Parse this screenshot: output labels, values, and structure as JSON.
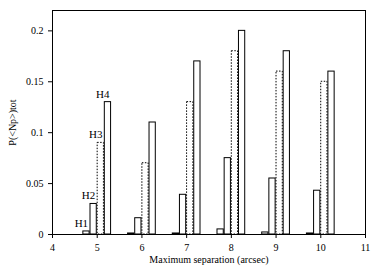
{
  "chart_data": {
    "type": "bar",
    "x_label": "Maximum separation (arcsec)",
    "y_label": "P(<Np>)tot",
    "x": [
      5,
      6,
      7,
      8,
      9,
      10
    ],
    "series": [
      {
        "name": "H1",
        "color": "#000000",
        "line_style": "solid",
        "values": [
          0.003,
          0.001,
          0.001,
          0.005,
          0.002,
          0.001
        ]
      },
      {
        "name": "H2",
        "color": "#000000",
        "line_style": "solid",
        "values": [
          0.03,
          0.016,
          0.039,
          0.075,
          0.055,
          0.043
        ]
      },
      {
        "name": "H3",
        "color": "#000000",
        "line_style": "dotted",
        "values": [
          0.09,
          0.07,
          0.13,
          0.18,
          0.16,
          0.15
        ]
      },
      {
        "name": "H4",
        "color": "#000000",
        "line_style": "solid",
        "values": [
          0.13,
          0.11,
          0.17,
          0.2,
          0.18,
          0.16
        ]
      }
    ],
    "xlim": [
      4,
      11
    ],
    "xticks": [
      4,
      5,
      6,
      7,
      8,
      9,
      10,
      11
    ],
    "ylim": [
      0,
      0.22
    ],
    "yticks": [
      0,
      0.05,
      0.1,
      0.15,
      0.2
    ],
    "grid": false
  }
}
